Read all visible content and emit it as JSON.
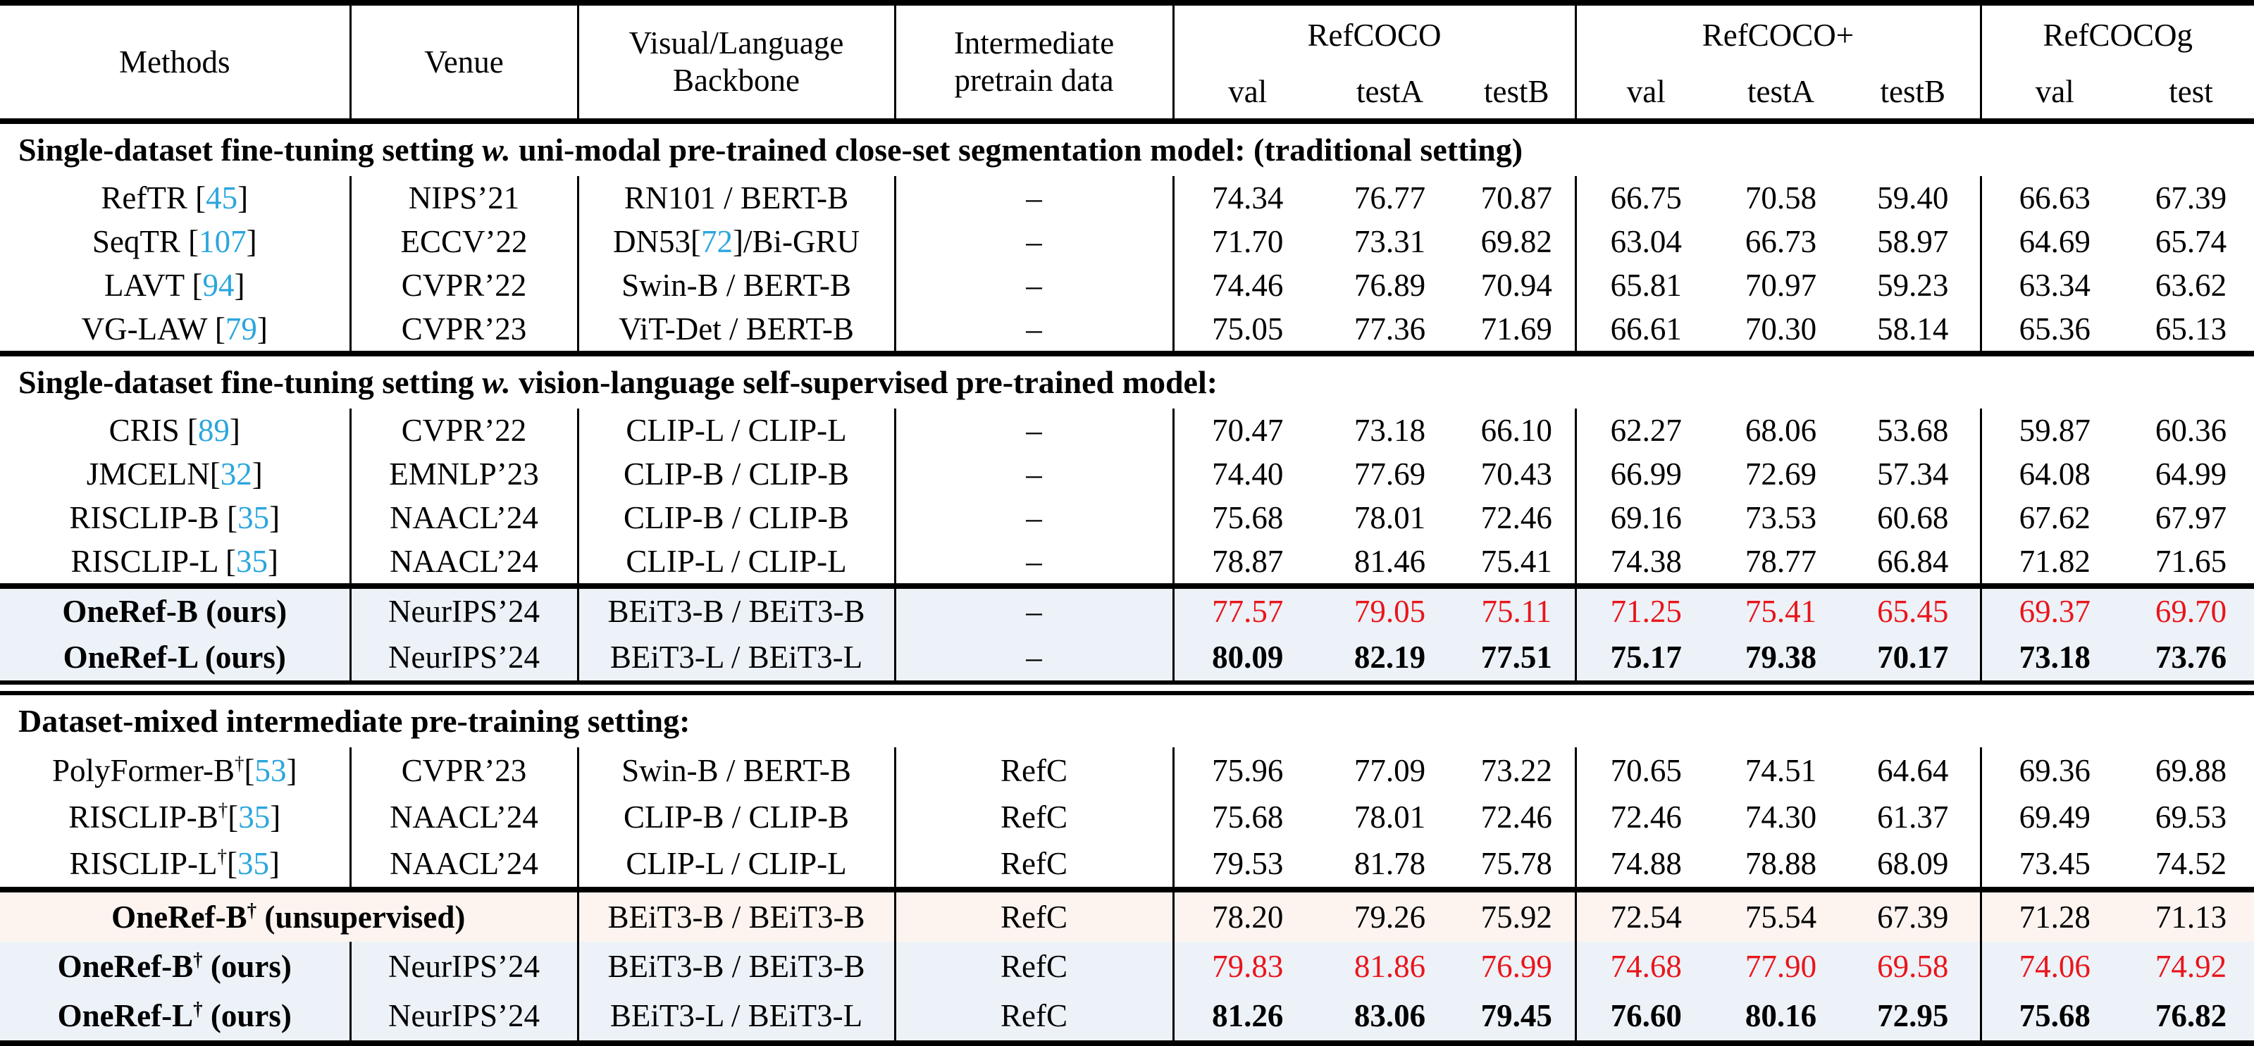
{
  "header": {
    "methods": "Methods",
    "venue": "Venue",
    "backbone": [
      "Visual/Language",
      "Backbone"
    ],
    "pretrain": [
      "Intermediate",
      "pretrain data"
    ],
    "groups": [
      {
        "label": "RefCOCO",
        "subs": [
          "val",
          "testA",
          "testB"
        ]
      },
      {
        "label": "RefCOCO+",
        "subs": [
          "val",
          "testA",
          "testB"
        ]
      },
      {
        "label": "RefCOCOg",
        "subs": [
          "val",
          "test"
        ]
      }
    ]
  },
  "colors": {
    "citation": "#2ba6dd",
    "red_value": "#e9151b",
    "blue_row_bg": "#ecf2f8",
    "pink_row_bg": "#fdf4f0"
  },
  "blocks": [
    {
      "kind": "title",
      "pre": "Single-dataset fine-tuning setting ",
      "italic": "w.",
      "post": " uni-modal pre-trained close-set segmentation model: (traditional setting)"
    },
    {
      "kind": "row",
      "method": {
        "name": "RefTR",
        "sep": " ",
        "cite": "45"
      },
      "venue": "NIPS’21",
      "backbone": {
        "pre": "RN101 / BERT-B"
      },
      "pretrain": "–",
      "values": [
        "74.34",
        "76.77",
        "70.87",
        "66.75",
        "70.58",
        "59.40",
        "66.63",
        "67.39"
      ]
    },
    {
      "kind": "row",
      "method": {
        "name": "SeqTR",
        "sep": " ",
        "cite": "107"
      },
      "venue": "ECCV’22",
      "backbone": {
        "pre": "DN53[",
        "cite": "72",
        "post": "]/Bi-GRU"
      },
      "pretrain": "–",
      "values": [
        "71.70",
        "73.31",
        "69.82",
        "63.04",
        "66.73",
        "58.97",
        "64.69",
        "65.74"
      ]
    },
    {
      "kind": "row",
      "method": {
        "name": "LAVT",
        "sep": " ",
        "cite": "94"
      },
      "venue": "CVPR’22",
      "backbone": {
        "pre": "Swin-B / BERT-B"
      },
      "pretrain": "–",
      "values": [
        "74.46",
        "76.89",
        "70.94",
        "65.81",
        "70.97",
        "59.23",
        "63.34",
        "63.62"
      ]
    },
    {
      "kind": "row",
      "method": {
        "name": "VG-LAW",
        "sep": " ",
        "cite": "79"
      },
      "venue": "CVPR’23",
      "backbone": {
        "pre": "ViT-Det / BERT-B"
      },
      "pretrain": "–",
      "values": [
        "75.05",
        "77.36",
        "71.69",
        "66.61",
        "70.30",
        "58.14",
        "65.36",
        "65.13"
      ]
    },
    {
      "kind": "rule",
      "style": "thick"
    },
    {
      "kind": "title",
      "pre": "Single-dataset fine-tuning setting ",
      "italic": "w.",
      "post": " vision-language self-supervised pre-trained model:"
    },
    {
      "kind": "row",
      "method": {
        "name": "CRIS",
        "sep": " ",
        "cite": "89"
      },
      "venue": "CVPR’22",
      "backbone": {
        "pre": "CLIP-L / CLIP-L"
      },
      "pretrain": "–",
      "values": [
        "70.47",
        "73.18",
        "66.10",
        "62.27",
        "68.06",
        "53.68",
        "59.87",
        "60.36"
      ]
    },
    {
      "kind": "row",
      "method": {
        "name": "JMCELN",
        "sep": "",
        "cite": "32"
      },
      "venue": "EMNLP’23",
      "backbone": {
        "pre": "CLIP-B / CLIP-B"
      },
      "pretrain": "–",
      "values": [
        "74.40",
        "77.69",
        "70.43",
        "66.99",
        "72.69",
        "57.34",
        "64.08",
        "64.99"
      ]
    },
    {
      "kind": "row",
      "method": {
        "name": "RISCLIP-B",
        "sep": " ",
        "cite": "35"
      },
      "venue": "NAACL’24",
      "backbone": {
        "pre": "CLIP-B / CLIP-B"
      },
      "pretrain": "–",
      "values": [
        "75.68",
        "78.01",
        "72.46",
        "69.16",
        "73.53",
        "60.68",
        "67.62",
        "67.97"
      ]
    },
    {
      "kind": "row",
      "method": {
        "name": "RISCLIP-L",
        "sep": " ",
        "cite": "35"
      },
      "venue": "NAACL’24",
      "backbone": {
        "pre": "CLIP-L / CLIP-L"
      },
      "pretrain": "–",
      "values": [
        "78.87",
        "81.46",
        "75.41",
        "74.38",
        "78.77",
        "66.84",
        "71.82",
        "71.65"
      ]
    },
    {
      "kind": "rule",
      "style": "thick"
    },
    {
      "kind": "row",
      "bg": "blue",
      "method": {
        "name": "OneRef-B",
        "suffix": " (ours)",
        "bold": true
      },
      "venue": "NeurIPS’24",
      "backbone": {
        "pre": "BEiT3-B / BEiT3-B"
      },
      "pretrain": "–",
      "value_style": "red",
      "values": [
        "77.57",
        "79.05",
        "75.11",
        "71.25",
        "75.41",
        "65.45",
        "69.37",
        "69.70"
      ]
    },
    {
      "kind": "row",
      "bg": "blue",
      "method": {
        "name": "OneRef-L",
        "suffix": " (ours)",
        "bold": true
      },
      "venue": "NeurIPS’24",
      "backbone": {
        "pre": "BEiT3-L / BEiT3-L"
      },
      "pretrain": "–",
      "value_style": "bold",
      "values": [
        "80.09",
        "82.19",
        "77.51",
        "75.17",
        "79.38",
        "70.17",
        "73.18",
        "73.76"
      ]
    },
    {
      "kind": "rule",
      "style": "double"
    },
    {
      "kind": "title",
      "pre": "Dataset-mixed intermediate pre-training setting:",
      "italic": "",
      "post": ""
    },
    {
      "kind": "row",
      "method": {
        "name": "PolyFormer-B",
        "sup": "†",
        "sep": "",
        "cite": "53"
      },
      "venue": "CVPR’23",
      "backbone": {
        "pre": "Swin-B / BERT-B"
      },
      "pretrain": "RefC",
      "values": [
        "75.96",
        "77.09",
        "73.22",
        "70.65",
        "74.51",
        "64.64",
        "69.36",
        "69.88"
      ]
    },
    {
      "kind": "row",
      "method": {
        "name": "RISCLIP-B",
        "sup": "†",
        "sep": "",
        "cite": "35"
      },
      "venue": "NAACL’24",
      "backbone": {
        "pre": "CLIP-B / CLIP-B"
      },
      "pretrain": "RefC",
      "values": [
        "75.68",
        "78.01",
        "72.46",
        "72.46",
        "74.30",
        "61.37",
        "69.49",
        "69.53"
      ]
    },
    {
      "kind": "row",
      "method": {
        "name": "RISCLIP-L",
        "sup": "†",
        "sep": "",
        "cite": "35"
      },
      "venue": "NAACL’24",
      "backbone": {
        "pre": "CLIP-L / CLIP-L"
      },
      "pretrain": "RefC",
      "values": [
        "79.53",
        "81.78",
        "75.78",
        "74.88",
        "78.88",
        "68.09",
        "73.45",
        "74.52"
      ]
    },
    {
      "kind": "rule",
      "style": "thick"
    },
    {
      "kind": "row",
      "bg": "pink",
      "method_span": true,
      "method": {
        "name": "OneRef-B",
        "sup": "†",
        "suffix": " (unsupervised)",
        "bold": true
      },
      "venue": "",
      "backbone": {
        "pre": "BEiT3-B / BEiT3-B"
      },
      "pretrain": "RefC",
      "values": [
        "78.20",
        "79.26",
        "75.92",
        "72.54",
        "75.54",
        "67.39",
        "71.28",
        "71.13"
      ]
    },
    {
      "kind": "row",
      "bg": "blue",
      "method": {
        "name": "OneRef-B",
        "sup": "†",
        "suffix": " (ours)",
        "bold": true
      },
      "venue": "NeurIPS’24",
      "backbone": {
        "pre": "BEiT3-B / BEiT3-B"
      },
      "pretrain": "RefC",
      "value_style": "red",
      "values": [
        "79.83",
        "81.86",
        "76.99",
        "74.68",
        "77.90",
        "69.58",
        "74.06",
        "74.92"
      ]
    },
    {
      "kind": "row",
      "bg": "blue",
      "method": {
        "name": "OneRef-L",
        "sup": "†",
        "suffix": " (ours)",
        "bold": true
      },
      "venue": "NeurIPS’24",
      "backbone": {
        "pre": "BEiT3-L / BEiT3-L"
      },
      "pretrain": "RefC",
      "value_style": "bold",
      "values": [
        "81.26",
        "83.06",
        "79.45",
        "76.60",
        "80.16",
        "72.95",
        "75.68",
        "76.82"
      ]
    },
    {
      "kind": "rule",
      "style": "thick"
    }
  ]
}
